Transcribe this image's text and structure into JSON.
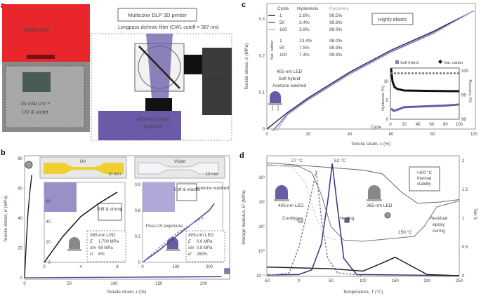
{
  "panel_a": {
    "label": "a",
    "build_area": "Build area",
    "power": "15 mW cm⁻²",
    "power_sub": "UV & violet",
    "printer_title": "Multicolor DLP 3D printer",
    "filter": "Longpass dichroic filter (CWL cutoff = 387 nm)",
    "uv_projector": [
      "365-nm",
      "(UV)",
      "projector"
    ],
    "violet_projector": [
      "405-nm (violet)",
      "projector"
    ],
    "colors": {
      "red": "#e8262b",
      "violet": "#6a5aa8"
    }
  },
  "chart_data": [
    {
      "id": "b",
      "label": "b",
      "type": "line",
      "xlabel": "Tensile strain, ε (%)",
      "ylabel": "Tensile stress, σ (MPa)",
      "xlim": [
        0,
        230
      ],
      "ylim": [
        0,
        80
      ],
      "xticks": [
        0,
        50,
        100,
        150,
        200
      ],
      "yticks": [
        0,
        20,
        40,
        60,
        80
      ],
      "series": [
        {
          "color": "#111",
          "points": [
            [
              0,
              0
            ],
            [
              2,
              25
            ],
            [
              4,
              45
            ],
            [
              6,
              58
            ],
            [
              8,
              69
            ]
          ]
        },
        {
          "color": "#4a3f8c",
          "points": [
            [
              0,
              0
            ],
            [
              50,
              0.2
            ],
            [
              100,
              0.35
            ],
            [
              150,
              0.5
            ],
            [
              200,
              0.65
            ],
            [
              220,
              0.7
            ]
          ]
        }
      ],
      "photos": {
        "uv": "UV",
        "violet": "Violet",
        "scale": "10 mm"
      },
      "inset_uv": {
        "xlim": [
          0,
          8
        ],
        "ylim": [
          0,
          70
        ],
        "xticks": [
          0,
          4,
          8
        ],
        "yticks": [
          0,
          20,
          40,
          60
        ],
        "label": "Stiff & strong",
        "led": "365-nm LED",
        "props": [
          [
            "E",
            "1,700 MPa"
          ],
          [
            "σm",
            "69 MPa"
          ],
          [
            "εf",
            "8%"
          ]
        ]
      },
      "inset_violet": {
        "xlim": [
          0,
          230
        ],
        "ylim": [
          0,
          0.9
        ],
        "xticks": [
          0,
          100,
          200
        ],
        "yticks": [
          "0",
          "0.3",
          "0.6",
          "0.9"
        ],
        "label": "Soft & elastic",
        "washed": "Acetone washed",
        "post_uv": "Post-UV exposure",
        "led": "405-nm LED",
        "props": [
          [
            "E",
            "0.6 MPa"
          ],
          [
            "σm",
            "0.8 MPa"
          ],
          [
            "εf",
            "260%"
          ]
        ],
        "series": [
          {
            "color": "#4a3f8c",
            "points": [
              [
                0,
                0
              ],
              [
                50,
                0.14
              ],
              [
                100,
                0.3
              ],
              [
                150,
                0.45
              ],
              [
                200,
                0.6
              ],
              [
                215,
                0.68
              ]
            ]
          },
          {
            "color": "#9a90c8",
            "dashed": true,
            "points": [
              [
                0,
                0
              ],
              [
                50,
                0.17
              ],
              [
                100,
                0.33
              ],
              [
                150,
                0.45
              ],
              [
                185,
                0.52
              ]
            ]
          }
        ]
      }
    },
    {
      "id": "c",
      "label": "c",
      "type": "line",
      "xlabel": "Tensile strain, ε (%)",
      "ylabel": "Tensile stress, σ (MPa)",
      "xlim": [
        0,
        100
      ],
      "ylim": [
        0,
        0.32
      ],
      "xticks": [
        0,
        20,
        40,
        60,
        80,
        100
      ],
      "yticks": [
        "0",
        "0.1",
        "0.2",
        "0.3"
      ],
      "table": {
        "headers": [
          "Cycle",
          "Hysteresis",
          "Recovery"
        ],
        "rows": [
          [
            "1",
            "2.8%",
            "99.5%"
          ],
          [
            "50",
            "3.4%",
            "99.9%"
          ],
          [
            "100",
            "3.9%",
            "99.9%"
          ]
        ],
        "nat_label": "Nat. rubber",
        "nat_rows": [
          [
            "1",
            "13.4%",
            "98.0%"
          ],
          [
            "50",
            "7.5%",
            "99.9%"
          ],
          [
            "100",
            "7.4%",
            "99.9%"
          ]
        ]
      },
      "note": [
        "405-nm LED",
        "Soft hybrid",
        "Acetone washed"
      ],
      "box": "Highly elastic",
      "series": [
        {
          "name": "1",
          "color": "#2a2250",
          "offset": 0
        },
        {
          "name": "50",
          "color": "#6a5aa8",
          "offset": 3
        },
        {
          "name": "100",
          "color": "#b8b0dc",
          "offset": 4.5
        }
      ],
      "curve": [
        [
          0,
          0
        ],
        [
          10,
          0.045
        ],
        [
          20,
          0.085
        ],
        [
          40,
          0.155
        ],
        [
          60,
          0.215
        ],
        [
          80,
          0.265
        ],
        [
          100,
          0.322
        ]
      ],
      "inset": {
        "legend": [
          "Soft hybrid",
          "Nat. rubber"
        ],
        "ylabel": "Hysteresis (%)",
        "y2label": "Recovery (%)",
        "xlabel": "Cycle",
        "xticks": [
          0,
          20,
          40,
          60,
          80,
          100
        ],
        "yticks": [
          0,
          5,
          10
        ],
        "y2ticks": [
          98,
          99,
          100
        ],
        "nat_hyst": [
          [
            1,
            13.4
          ],
          [
            3,
            10
          ],
          [
            6,
            8.5
          ],
          [
            10,
            8
          ],
          [
            20,
            7.6
          ],
          [
            50,
            7.5
          ],
          [
            100,
            7.4
          ]
        ],
        "soft_hyst": [
          [
            1,
            2.8
          ],
          [
            5,
            2.2
          ],
          [
            10,
            2.5
          ],
          [
            20,
            3.2
          ],
          [
            50,
            3.4
          ],
          [
            80,
            3.6
          ],
          [
            100,
            3.9
          ]
        ]
      }
    },
    {
      "id": "d",
      "label": "d",
      "type": "line",
      "xlabel": "Temperature, T (°C)",
      "ylabel": "Storage modulus, E′ (MPa)",
      "y2label": "Tan δ",
      "xlim": [
        -50,
        250
      ],
      "ylim_log": [
        -1,
        3.65
      ],
      "y2lim": [
        0,
        2.1
      ],
      "xticks": [
        -50,
        0,
        50,
        100,
        150,
        200,
        250
      ],
      "yticks": [
        "10³",
        "10²",
        "10¹",
        "10⁰",
        "10⁻¹"
      ],
      "y2ticks": [
        "0",
        "0.5",
        "1",
        "1.5",
        "2"
      ],
      "annotations": {
        "t1": "27 °C",
        "t2": "52 °C",
        "t3": "150 °C",
        "box": "&gt;100 °C thermal stability",
        "led405": "405-nm LED",
        "led365": "365-nm LED",
        "cooling": "Cooling",
        "heating": "Heating",
        "residual": "Residual epoxy curing"
      },
      "series": [
        {
          "axis": "log",
          "color": "#666",
          "points": [
            [
              -50,
              3.6
            ],
            [
              0,
              3.5
            ],
            [
              50,
              3.4
            ],
            [
              100,
              3.3
            ],
            [
              130,
              3.15
            ],
            [
              160,
              2.4
            ],
            [
              185,
              1.95
            ],
            [
              220,
              2.0
            ],
            [
              250,
              2.1
            ]
          ]
        },
        {
          "axis": "log",
          "color": "#777",
          "points": [
            [
              -50,
              3.5
            ],
            [
              0,
              3.45
            ],
            [
              20,
              3.2
            ],
            [
              35,
              2.3
            ],
            [
              50,
              1.0
            ],
            [
              70,
              0.45
            ],
            [
              100,
              0.4
            ],
            [
              180,
              0.6
            ],
            [
              195,
              1.0
            ],
            [
              215,
              1.8
            ],
            [
              250,
              2.05
            ]
          ]
        },
        {
          "axis": "log",
          "color": "#c8c4e0",
          "dashed": true,
          "points": [
            [
              -50,
              3.55
            ],
            [
              -10,
              3.4
            ],
            [
              10,
              2.8
            ],
            [
              25,
              1.5
            ],
            [
              40,
              0.6
            ],
            [
              60,
              0.45
            ]
          ]
        },
        {
          "axis": "tan",
          "color": "#3a2f80",
          "points": [
            [
              -50,
              0.01
            ],
            [
              0,
              0.02
            ],
            [
              20,
              0.1
            ],
            [
              35,
              0.55
            ],
            [
              45,
              1.3
            ],
            [
              52,
              1.95
            ],
            [
              60,
              1.2
            ],
            [
              70,
              0.3
            ],
            [
              90,
              0.02
            ],
            [
              250,
              0
            ]
          ]
        },
        {
          "axis": "tan",
          "color": "#8880a8",
          "dashed": true,
          "points": [
            [
              -50,
              0
            ],
            [
              -15,
              0.05
            ],
            [
              0,
              0.5
            ],
            [
              15,
              1.2
            ],
            [
              27,
              1.82
            ],
            [
              35,
              1.0
            ],
            [
              45,
              0.3
            ],
            [
              60,
              0.05
            ],
            [
              100,
              0
            ]
          ]
        },
        {
          "axis": "tan",
          "color": "#222",
          "points": [
            [
              -50,
              0.15
            ],
            [
              50,
              0.12
            ],
            [
              100,
              0.08
            ],
            [
              130,
              0.22
            ],
            [
              150,
              0.32
            ],
            [
              170,
              0.2
            ],
            [
              200,
              0.02
            ],
            [
              250,
              0
            ]
          ]
        }
      ]
    }
  ]
}
